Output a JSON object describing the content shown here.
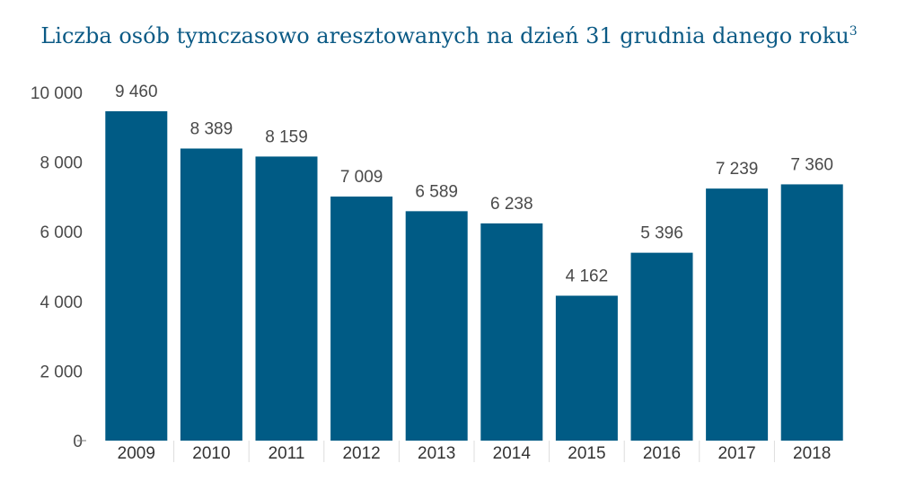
{
  "chart_data": {
    "type": "bar",
    "title": "Liczba osób tymczasowo aresztowanych na dzień 31 grudnia danego roku",
    "title_superscript": "3",
    "categories": [
      "2009",
      "2010",
      "2011",
      "2012",
      "2013",
      "2014",
      "2015",
      "2016",
      "2017",
      "2018"
    ],
    "values": [
      9460,
      8389,
      8159,
      7009,
      6589,
      6238,
      4162,
      5396,
      7239,
      7360
    ],
    "value_labels": [
      "9 460",
      "8 389",
      "8 159",
      "7 009",
      "6 589",
      "6 238",
      "4 162",
      "5 396",
      "7 239",
      "7 360"
    ],
    "ylim": [
      0,
      10000
    ],
    "yticks": [
      0,
      2000,
      4000,
      6000,
      8000,
      10000
    ],
    "ytick_labels": [
      "0",
      "2 000",
      "4 000",
      "6 000",
      "8 000",
      "10 000"
    ],
    "xlabel": "",
    "ylabel": "",
    "grid": false,
    "bar_color": "#005b85"
  }
}
